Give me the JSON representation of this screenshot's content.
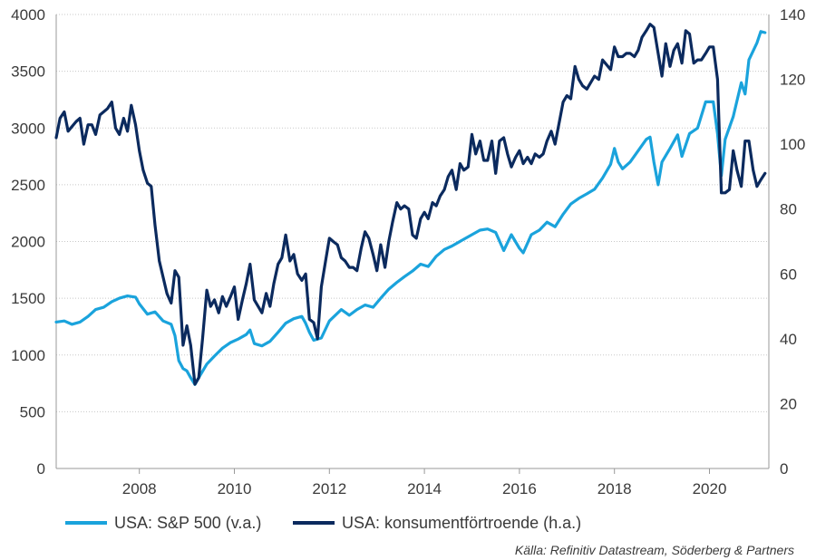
{
  "chart_data": {
    "type": "line",
    "xlim": [
      2006.25,
      2021.25
    ],
    "x_ticks": [
      2008,
      2010,
      2012,
      2014,
      2016,
      2018,
      2020
    ],
    "y_left": {
      "range": [
        0,
        4000
      ],
      "ticks": [
        0,
        500,
        1000,
        1500,
        2000,
        2500,
        3000,
        3500,
        4000
      ]
    },
    "y_right": {
      "range": [
        0,
        140
      ],
      "ticks": [
        0,
        20,
        40,
        60,
        80,
        100,
        120,
        140
      ]
    },
    "grid": "horizontal-dotted",
    "legend": {
      "placement": "bottom"
    },
    "source": "Källa: Refinitiv Datastream, Söderberg & Partners",
    "series": [
      {
        "name": "USA: S&P 500 (v.a.)",
        "axis": "left",
        "color": "#1aa3dc",
        "points": [
          [
            2006.25,
            1290
          ],
          [
            2006.42,
            1300
          ],
          [
            2006.58,
            1270
          ],
          [
            2006.75,
            1290
          ],
          [
            2006.92,
            1340
          ],
          [
            2007.08,
            1400
          ],
          [
            2007.25,
            1420
          ],
          [
            2007.42,
            1470
          ],
          [
            2007.58,
            1500
          ],
          [
            2007.75,
            1520
          ],
          [
            2007.92,
            1510
          ],
          [
            2008.0,
            1450
          ],
          [
            2008.17,
            1360
          ],
          [
            2008.33,
            1380
          ],
          [
            2008.5,
            1300
          ],
          [
            2008.67,
            1270
          ],
          [
            2008.75,
            1170
          ],
          [
            2008.83,
            950
          ],
          [
            2008.92,
            880
          ],
          [
            2009.0,
            860
          ],
          [
            2009.08,
            800
          ],
          [
            2009.17,
            740
          ],
          [
            2009.25,
            800
          ],
          [
            2009.42,
            920
          ],
          [
            2009.58,
            990
          ],
          [
            2009.75,
            1060
          ],
          [
            2009.92,
            1110
          ],
          [
            2010.08,
            1140
          ],
          [
            2010.25,
            1180
          ],
          [
            2010.33,
            1220
          ],
          [
            2010.42,
            1100
          ],
          [
            2010.58,
            1080
          ],
          [
            2010.75,
            1120
          ],
          [
            2010.92,
            1200
          ],
          [
            2011.08,
            1280
          ],
          [
            2011.25,
            1320
          ],
          [
            2011.42,
            1340
          ],
          [
            2011.5,
            1280
          ],
          [
            2011.58,
            1200
          ],
          [
            2011.67,
            1130
          ],
          [
            2011.83,
            1150
          ],
          [
            2012.0,
            1300
          ],
          [
            2012.25,
            1400
          ],
          [
            2012.42,
            1350
          ],
          [
            2012.58,
            1400
          ],
          [
            2012.75,
            1440
          ],
          [
            2012.92,
            1420
          ],
          [
            2013.08,
            1500
          ],
          [
            2013.25,
            1580
          ],
          [
            2013.42,
            1640
          ],
          [
            2013.58,
            1690
          ],
          [
            2013.75,
            1740
          ],
          [
            2013.92,
            1800
          ],
          [
            2014.08,
            1780
          ],
          [
            2014.25,
            1870
          ],
          [
            2014.42,
            1930
          ],
          [
            2014.58,
            1960
          ],
          [
            2014.83,
            2020
          ],
          [
            2015.0,
            2060
          ],
          [
            2015.17,
            2100
          ],
          [
            2015.33,
            2110
          ],
          [
            2015.5,
            2080
          ],
          [
            2015.67,
            1920
          ],
          [
            2015.83,
            2060
          ],
          [
            2016.0,
            1940
          ],
          [
            2016.08,
            1900
          ],
          [
            2016.25,
            2060
          ],
          [
            2016.42,
            2100
          ],
          [
            2016.58,
            2170
          ],
          [
            2016.75,
            2130
          ],
          [
            2016.92,
            2240
          ],
          [
            2017.08,
            2330
          ],
          [
            2017.25,
            2380
          ],
          [
            2017.42,
            2420
          ],
          [
            2017.58,
            2460
          ],
          [
            2017.75,
            2560
          ],
          [
            2017.92,
            2680
          ],
          [
            2018.0,
            2820
          ],
          [
            2018.08,
            2700
          ],
          [
            2018.17,
            2640
          ],
          [
            2018.33,
            2700
          ],
          [
            2018.5,
            2800
          ],
          [
            2018.67,
            2900
          ],
          [
            2018.75,
            2920
          ],
          [
            2018.83,
            2700
          ],
          [
            2018.92,
            2500
          ],
          [
            2019.0,
            2700
          ],
          [
            2019.17,
            2820
          ],
          [
            2019.33,
            2940
          ],
          [
            2019.42,
            2750
          ],
          [
            2019.58,
            2950
          ],
          [
            2019.75,
            3000
          ],
          [
            2019.92,
            3230
          ],
          [
            2020.08,
            3230
          ],
          [
            2020.17,
            2950
          ],
          [
            2020.25,
            2580
          ],
          [
            2020.33,
            2900
          ],
          [
            2020.5,
            3100
          ],
          [
            2020.67,
            3400
          ],
          [
            2020.75,
            3300
          ],
          [
            2020.83,
            3600
          ],
          [
            2021.0,
            3750
          ],
          [
            2021.08,
            3850
          ],
          [
            2021.17,
            3840
          ]
        ]
      },
      {
        "name": "USA: konsumentförtroende (h.a.)",
        "axis": "right",
        "color": "#0b2a5e",
        "points": [
          [
            2006.25,
            102
          ],
          [
            2006.33,
            108
          ],
          [
            2006.42,
            110
          ],
          [
            2006.5,
            104
          ],
          [
            2006.67,
            107
          ],
          [
            2006.75,
            108
          ],
          [
            2006.83,
            100
          ],
          [
            2006.92,
            106
          ],
          [
            2007.0,
            106
          ],
          [
            2007.08,
            103
          ],
          [
            2007.17,
            109
          ],
          [
            2007.33,
            111
          ],
          [
            2007.42,
            113
          ],
          [
            2007.5,
            105
          ],
          [
            2007.58,
            103
          ],
          [
            2007.67,
            108
          ],
          [
            2007.75,
            104
          ],
          [
            2007.83,
            112
          ],
          [
            2007.92,
            106
          ],
          [
            2008.0,
            98
          ],
          [
            2008.08,
            92
          ],
          [
            2008.17,
            88
          ],
          [
            2008.25,
            87
          ],
          [
            2008.33,
            75
          ],
          [
            2008.42,
            64
          ],
          [
            2008.5,
            59
          ],
          [
            2008.58,
            54
          ],
          [
            2008.67,
            51
          ],
          [
            2008.75,
            61
          ],
          [
            2008.83,
            59
          ],
          [
            2008.92,
            38
          ],
          [
            2009.0,
            44
          ],
          [
            2009.08,
            38
          ],
          [
            2009.17,
            26
          ],
          [
            2009.25,
            28
          ],
          [
            2009.33,
            40
          ],
          [
            2009.42,
            55
          ],
          [
            2009.5,
            50
          ],
          [
            2009.58,
            52
          ],
          [
            2009.67,
            48
          ],
          [
            2009.75,
            53
          ],
          [
            2009.83,
            50
          ],
          [
            2009.92,
            53
          ],
          [
            2010.0,
            56
          ],
          [
            2010.08,
            46
          ],
          [
            2010.17,
            52
          ],
          [
            2010.25,
            57
          ],
          [
            2010.33,
            63
          ],
          [
            2010.42,
            52
          ],
          [
            2010.5,
            50
          ],
          [
            2010.58,
            48
          ],
          [
            2010.67,
            54
          ],
          [
            2010.75,
            50
          ],
          [
            2010.83,
            57
          ],
          [
            2010.92,
            63
          ],
          [
            2011.0,
            65
          ],
          [
            2011.08,
            72
          ],
          [
            2011.17,
            64
          ],
          [
            2011.25,
            66
          ],
          [
            2011.33,
            60
          ],
          [
            2011.42,
            58
          ],
          [
            2011.5,
            60
          ],
          [
            2011.58,
            46
          ],
          [
            2011.67,
            45
          ],
          [
            2011.75,
            40
          ],
          [
            2011.83,
            56
          ],
          [
            2011.92,
            64
          ],
          [
            2012.0,
            71
          ],
          [
            2012.08,
            70
          ],
          [
            2012.17,
            69
          ],
          [
            2012.25,
            65
          ],
          [
            2012.33,
            64
          ],
          [
            2012.42,
            62
          ],
          [
            2012.5,
            62
          ],
          [
            2012.58,
            61
          ],
          [
            2012.67,
            68
          ],
          [
            2012.75,
            73
          ],
          [
            2012.83,
            71
          ],
          [
            2012.92,
            66
          ],
          [
            2013.0,
            61
          ],
          [
            2013.08,
            69
          ],
          [
            2013.17,
            62
          ],
          [
            2013.25,
            70
          ],
          [
            2013.33,
            76
          ],
          [
            2013.42,
            82
          ],
          [
            2013.5,
            80
          ],
          [
            2013.58,
            81
          ],
          [
            2013.67,
            80
          ],
          [
            2013.75,
            72
          ],
          [
            2013.83,
            71
          ],
          [
            2013.92,
            77
          ],
          [
            2014.0,
            79
          ],
          [
            2014.08,
            77
          ],
          [
            2014.17,
            82
          ],
          [
            2014.25,
            81
          ],
          [
            2014.33,
            84
          ],
          [
            2014.42,
            86
          ],
          [
            2014.5,
            90
          ],
          [
            2014.58,
            92
          ],
          [
            2014.67,
            86
          ],
          [
            2014.75,
            94
          ],
          [
            2014.83,
            92
          ],
          [
            2014.92,
            93
          ],
          [
            2015.0,
            103
          ],
          [
            2015.08,
            97
          ],
          [
            2015.17,
            101
          ],
          [
            2015.25,
            95
          ],
          [
            2015.33,
            95
          ],
          [
            2015.42,
            101
          ],
          [
            2015.5,
            91
          ],
          [
            2015.58,
            101
          ],
          [
            2015.67,
            102
          ],
          [
            2015.75,
            97
          ],
          [
            2015.83,
            93
          ],
          [
            2015.92,
            96
          ],
          [
            2016.0,
            98
          ],
          [
            2016.08,
            94
          ],
          [
            2016.17,
            96
          ],
          [
            2016.25,
            94
          ],
          [
            2016.33,
            97
          ],
          [
            2016.42,
            96
          ],
          [
            2016.5,
            97
          ],
          [
            2016.58,
            101
          ],
          [
            2016.67,
            104
          ],
          [
            2016.75,
            100
          ],
          [
            2016.92,
            113
          ],
          [
            2017.0,
            115
          ],
          [
            2017.08,
            114
          ],
          [
            2017.17,
            124
          ],
          [
            2017.25,
            120
          ],
          [
            2017.33,
            118
          ],
          [
            2017.42,
            117
          ],
          [
            2017.58,
            121
          ],
          [
            2017.67,
            120
          ],
          [
            2017.75,
            126
          ],
          [
            2017.92,
            123
          ],
          [
            2018.0,
            130
          ],
          [
            2018.08,
            127
          ],
          [
            2018.17,
            127
          ],
          [
            2018.25,
            128
          ],
          [
            2018.33,
            128
          ],
          [
            2018.42,
            127
          ],
          [
            2018.5,
            129
          ],
          [
            2018.58,
            133
          ],
          [
            2018.67,
            135
          ],
          [
            2018.75,
            137
          ],
          [
            2018.83,
            136
          ],
          [
            2018.92,
            128
          ],
          [
            2019.0,
            121
          ],
          [
            2019.08,
            131
          ],
          [
            2019.17,
            124
          ],
          [
            2019.25,
            129
          ],
          [
            2019.33,
            131
          ],
          [
            2019.42,
            125
          ],
          [
            2019.5,
            135
          ],
          [
            2019.58,
            134
          ],
          [
            2019.67,
            125
          ],
          [
            2019.75,
            126
          ],
          [
            2019.83,
            126
          ],
          [
            2019.92,
            128
          ],
          [
            2020.0,
            130
          ],
          [
            2020.08,
            130
          ],
          [
            2020.17,
            120
          ],
          [
            2020.25,
            85
          ],
          [
            2020.33,
            85
          ],
          [
            2020.42,
            86
          ],
          [
            2020.5,
            98
          ],
          [
            2020.58,
            92
          ],
          [
            2020.67,
            87
          ],
          [
            2020.75,
            101
          ],
          [
            2020.83,
            101
          ],
          [
            2020.92,
            92
          ],
          [
            2021.0,
            87
          ],
          [
            2021.08,
            89
          ],
          [
            2021.17,
            91
          ]
        ]
      }
    ]
  }
}
